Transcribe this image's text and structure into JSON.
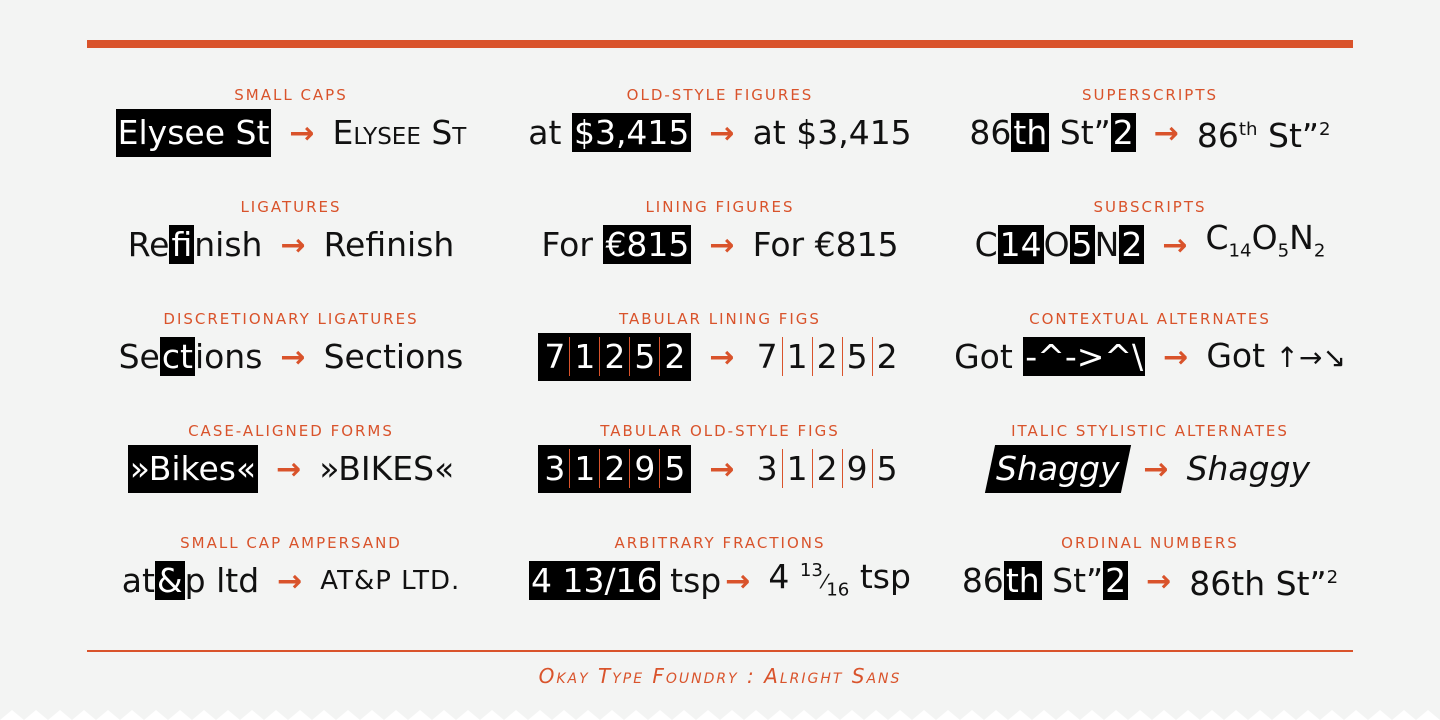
{
  "footer": "Okay Type Foundry : Alright Sans",
  "arrow": "→",
  "features": [
    {
      "label": "Small caps",
      "before": "Elysee St",
      "after": "Elysee St"
    },
    {
      "label": "Old-style figures",
      "before_prefix": "at ",
      "before_hl": "$3,415",
      "after": "at $3,415"
    },
    {
      "label": "Superscripts",
      "before_a": "86",
      "before_hl1": "th",
      "before_b": " St”",
      "before_hl2": "2",
      "after_a": "86",
      "after_sup1": "th",
      "after_b": " St”",
      "after_sup2": "2"
    },
    {
      "label": "Ligatures",
      "before_a": "Re",
      "before_hl": "fi",
      "before_b": "nish",
      "after": "Refinish"
    },
    {
      "label": "Lining figures",
      "before_prefix": "For ",
      "before_hl": "€815",
      "after": "For €815"
    },
    {
      "label": "Subscripts",
      "before_a": "C",
      "before_hl1": "14",
      "before_b": "O",
      "before_hl2": "5",
      "before_c": "N",
      "before_hl3": "2",
      "after_a": "C",
      "after_sub1": "14",
      "after_b": "O",
      "after_sub2": "5",
      "after_c": "N",
      "after_sub3": "2"
    },
    {
      "label": "Discretionary ligatures",
      "before_a": "Se",
      "before_hl": "ct",
      "before_b": "ions",
      "after": "Sections"
    },
    {
      "label": "Tabular lining figs",
      "digits": [
        "7",
        "1",
        "2",
        "5",
        "2"
      ]
    },
    {
      "label": "Contextual alternates",
      "before_prefix": "Got ",
      "before_hl": "-^->^\\",
      "after_prefix": "Got ",
      "after_glyphs": "↑→↘"
    },
    {
      "label": "Case-aligned forms",
      "before": "»Bikes«",
      "after": "»BIKES«"
    },
    {
      "label": "Tabular old-style figs",
      "digits": [
        "3",
        "1",
        "2",
        "9",
        "5"
      ]
    },
    {
      "label": "Italic stylistic alternates",
      "before": "Shaggy",
      "after": "Shaggy"
    },
    {
      "label": "Small cap ampersand",
      "before_a": "at",
      "before_hl": "&",
      "before_b": "p ltd",
      "after": "AT&P LTD."
    },
    {
      "label": "Arbitrary fractions",
      "before_hl": "4 13/16",
      "before_suffix": " tsp",
      "after_whole": "4 ",
      "after_num": "13",
      "after_den": "16",
      "after_suffix": " tsp"
    },
    {
      "label": "Ordinal numbers",
      "before_a": "86",
      "before_hl1": "th",
      "before_b": " St”",
      "before_hl2": "2",
      "after_a": "86th St”",
      "after_sup": "2"
    }
  ]
}
